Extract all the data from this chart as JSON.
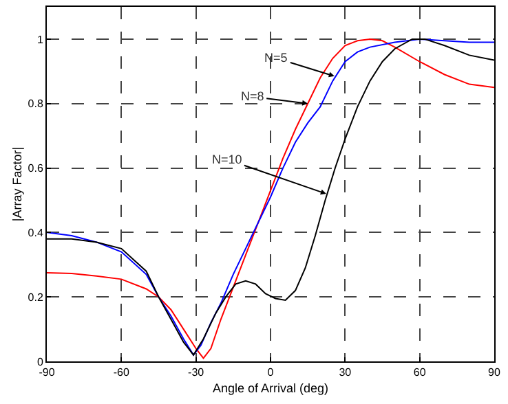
{
  "chart_data": {
    "type": "line",
    "xlabel": "Angle of Arrival (deg)",
    "ylabel": "|Array Factor|",
    "xlim": [
      -90,
      90
    ],
    "xticks": [
      -90,
      -60,
      -30,
      0,
      30,
      60,
      90
    ],
    "ylim": [
      0,
      1.1
    ],
    "yticks": [
      0,
      0.2,
      0.4,
      0.6,
      0.8,
      1
    ],
    "grid": true,
    "marker": "none",
    "line_style": "solid",
    "series": [
      {
        "color": "#ff0000",
        "x": [
          -90,
          -80,
          -70,
          -60,
          -50,
          -45,
          -40,
          -35,
          -30,
          -27,
          -24,
          -20,
          -15,
          -10,
          -5,
          0,
          5,
          10,
          15,
          20,
          25,
          30,
          35,
          40,
          45,
          50,
          60,
          70,
          80,
          90
        ],
        "values": [
          0.275,
          0.273,
          0.265,
          0.255,
          0.225,
          0.2,
          0.16,
          0.1,
          0.04,
          0.01,
          0.04,
          0.13,
          0.23,
          0.33,
          0.43,
          0.53,
          0.63,
          0.72,
          0.8,
          0.88,
          0.94,
          0.98,
          0.995,
          1,
          0.995,
          0.975,
          0.93,
          0.89,
          0.86,
          0.85
        ]
      },
      {
        "color": "#0000ff",
        "x": [
          -90,
          -80,
          -70,
          -60,
          -50,
          -45,
          -40,
          -35,
          -31,
          -28,
          -24,
          -20,
          -15,
          -10,
          -5,
          0,
          5,
          10,
          15,
          20,
          25,
          30,
          35,
          40,
          50,
          60,
          70,
          80,
          90
        ],
        "values": [
          0.4,
          0.39,
          0.37,
          0.34,
          0.27,
          0.2,
          0.14,
          0.07,
          0.02,
          0.05,
          0.12,
          0.18,
          0.27,
          0.35,
          0.43,
          0.51,
          0.6,
          0.68,
          0.74,
          0.79,
          0.87,
          0.93,
          0.96,
          0.975,
          0.99,
          1,
          0.995,
          0.99,
          0.99
        ]
      },
      {
        "color": "#000000",
        "x": [
          -90,
          -80,
          -70,
          -60,
          -50,
          -45,
          -40,
          -35,
          -31,
          -27,
          -22,
          -18,
          -14,
          -10,
          -6,
          -2,
          2,
          6,
          10,
          14,
          18,
          22,
          26,
          30,
          35,
          40,
          45,
          50,
          57,
          62,
          70,
          80,
          90
        ],
        "values": [
          0.38,
          0.38,
          0.37,
          0.35,
          0.28,
          0.2,
          0.13,
          0.06,
          0.02,
          0.07,
          0.15,
          0.2,
          0.24,
          0.25,
          0.24,
          0.21,
          0.195,
          0.19,
          0.22,
          0.29,
          0.39,
          0.5,
          0.6,
          0.69,
          0.79,
          0.87,
          0.93,
          0.97,
          1,
          1,
          0.98,
          0.95,
          0.935
        ]
      }
    ],
    "annotations": [
      {
        "text": "N=5",
        "x": 25.7,
        "y": 0.885
      },
      {
        "text": "N=8",
        "x": 15,
        "y": 0.8
      },
      {
        "text": "N=10",
        "x": 22.4,
        "y": 0.52
      }
    ]
  }
}
